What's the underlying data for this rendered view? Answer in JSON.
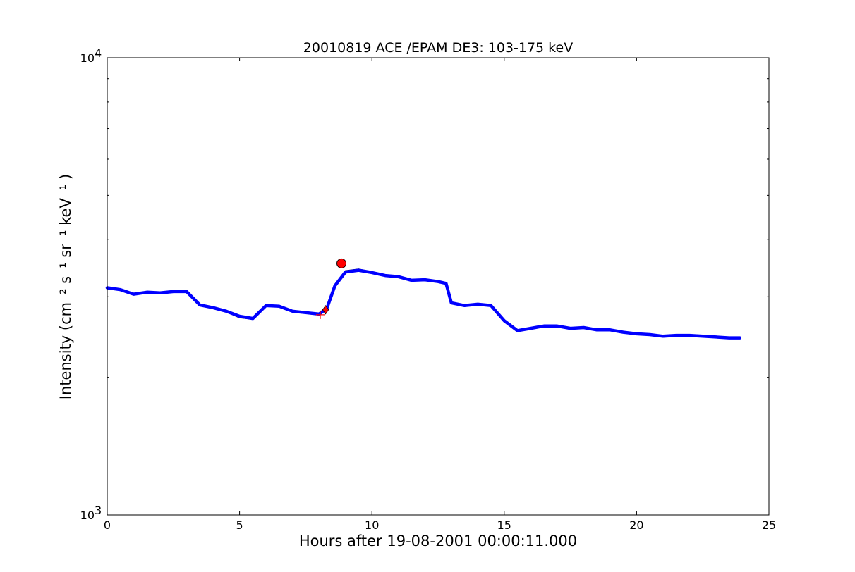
{
  "chart_data": {
    "type": "line",
    "title": "20010819 ACE /EPAM DE3: 103-175 keV",
    "xlabel": "Hours after 19-08-2001 00:00:11.000",
    "ylabel": "Intensity (cm⁻² s⁻¹ sr⁻¹ keV⁻¹ )",
    "xlim": [
      0,
      25
    ],
    "ylim": [
      1000,
      10000
    ],
    "yscale": "log",
    "grid": false,
    "x_ticks": [
      0,
      5,
      10,
      15,
      20,
      25
    ],
    "x_tick_labels": [
      "0",
      "5",
      "10",
      "15",
      "20",
      "25"
    ],
    "y_ticks": [
      1000,
      10000
    ],
    "y_tick_labels": [
      {
        "base": "10",
        "exp": "3"
      },
      {
        "base": "10",
        "exp": "4"
      }
    ],
    "series": [
      {
        "role": "raw",
        "color": "#000000",
        "x": [
          0.0,
          0.5,
          1.0,
          1.5,
          2.0,
          2.5,
          3.0,
          3.5,
          4.0,
          4.5,
          5.0,
          5.5,
          6.0,
          6.5,
          7.0,
          7.5,
          8.0,
          8.3,
          8.6,
          9.0,
          9.5,
          10.0,
          10.5,
          11.0,
          11.5,
          12.0,
          12.5,
          12.8,
          13.0,
          13.5,
          14.0,
          14.5,
          15.0,
          15.5,
          16.0,
          16.5,
          17.0,
          17.5,
          18.0,
          18.5,
          19.0,
          19.5,
          20.0,
          20.5,
          21.0,
          21.5,
          22.0,
          22.5,
          23.0,
          23.5,
          23.9
        ],
        "y": [
          3150,
          3120,
          3030,
          3080,
          3050,
          3070,
          3090,
          2870,
          2850,
          2780,
          2700,
          2680,
          2880,
          2870,
          2780,
          2760,
          2740,
          2820,
          3180,
          3420,
          3450,
          3400,
          3350,
          3330,
          3250,
          3260,
          3250,
          3200,
          2900,
          2860,
          2900,
          2880,
          2650,
          2520,
          2550,
          2600,
          2600,
          2570,
          2580,
          2530,
          2550,
          2500,
          2480,
          2470,
          2450,
          2460,
          2480,
          2470,
          2460,
          2430,
          2450
        ]
      },
      {
        "role": "smoothed",
        "color": "#0000ff",
        "x": [
          0.0,
          0.5,
          1.0,
          1.5,
          2.0,
          2.5,
          3.0,
          3.5,
          4.0,
          4.5,
          5.0,
          5.5,
          6.0,
          6.5,
          7.0,
          7.5,
          8.0,
          8.3,
          8.6,
          9.0,
          9.5,
          10.0,
          10.5,
          11.0,
          11.5,
          12.0,
          12.5,
          12.8,
          13.0,
          13.5,
          14.0,
          14.5,
          15.0,
          15.5,
          16.0,
          16.5,
          17.0,
          17.5,
          18.0,
          18.5,
          19.0,
          19.5,
          20.0,
          20.5,
          21.0,
          21.5,
          22.0,
          22.5,
          23.0,
          23.5,
          23.9
        ],
        "y": [
          3140,
          3110,
          3040,
          3070,
          3060,
          3080,
          3080,
          2880,
          2840,
          2790,
          2720,
          2690,
          2870,
          2860,
          2790,
          2770,
          2750,
          2830,
          3170,
          3400,
          3430,
          3390,
          3340,
          3320,
          3260,
          3270,
          3240,
          3210,
          2910,
          2870,
          2890,
          2870,
          2660,
          2530,
          2560,
          2590,
          2590,
          2560,
          2570,
          2540,
          2540,
          2510,
          2490,
          2480,
          2460,
          2470,
          2470,
          2460,
          2450,
          2440,
          2440
        ]
      }
    ],
    "markers": [
      {
        "shape": "plus",
        "color": "#ff0000",
        "x": 8.05,
        "y": 2740
      },
      {
        "shape": "diamond",
        "color": "#ff0000",
        "x": 8.25,
        "y": 2810
      },
      {
        "shape": "circle",
        "color": "#ff0000",
        "x": 8.85,
        "y": 3550
      }
    ]
  }
}
